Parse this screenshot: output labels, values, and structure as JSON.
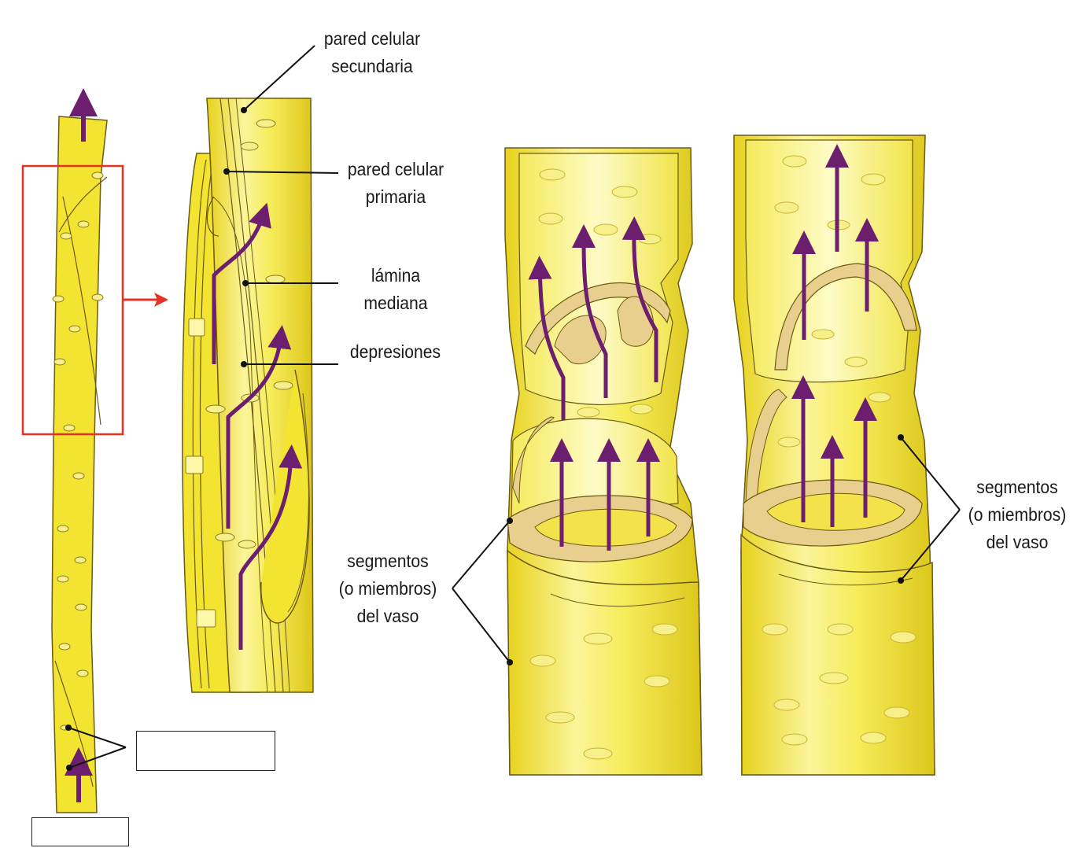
{
  "labels": {
    "secondary_wall_l1": "pared celular",
    "secondary_wall_l2": "secundaria",
    "primary_wall_l1": "pared celular",
    "primary_wall_l2": "primaria",
    "middle_lamella_l1": "lámina",
    "middle_lamella_l2": "mediana",
    "pits": "depresiones",
    "vessel_left_l1": "segmentos",
    "vessel_left_l2": "(o miembros)",
    "vessel_left_l3": "del vaso",
    "vessel_right_l1": "segmentos",
    "vessel_right_l2": "(o miembros)",
    "vessel_right_l3": "del vaso"
  },
  "blank_labels": [
    "",
    ""
  ],
  "colors": {
    "cell_fill": "#f2e430",
    "cell_light": "#fbf7a8",
    "cell_stroke": "#6b5a14",
    "wall_tan": "#e9cf8e",
    "pit": "#f7f08a",
    "arrow": "#6b1f6e",
    "zoom_box": "#e63222",
    "leader": "#111111"
  }
}
